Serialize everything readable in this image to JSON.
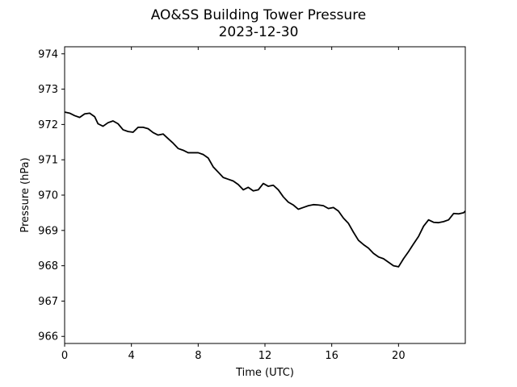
{
  "chart_data": {
    "type": "line",
    "title": "AO&SS Building Tower Pressure",
    "subtitle": "2023-12-30",
    "xlabel": "Time (UTC)",
    "ylabel": "Pressure (hPa)",
    "xlim": [
      0,
      24
    ],
    "ylim": [
      965.8,
      974.2
    ],
    "xticks": [
      0,
      4,
      8,
      12,
      16,
      20
    ],
    "yticks": [
      966,
      967,
      968,
      969,
      970,
      971,
      972,
      973,
      974
    ],
    "grid": false,
    "series_color": "#000000",
    "series": [
      {
        "x": [
          0,
          0.3,
          0.6,
          0.9,
          1.2,
          1.5,
          1.8,
          2.0,
          2.3,
          2.6,
          2.9,
          3.2,
          3.5,
          3.8,
          4.1,
          4.4,
          4.7,
          5.0,
          5.3,
          5.6,
          5.9,
          6.2,
          6.5,
          6.8,
          7.1,
          7.4,
          7.7,
          8.0,
          8.3,
          8.6,
          8.9,
          9.2,
          9.5,
          9.8,
          10.1,
          10.4,
          10.7,
          11.0,
          11.3,
          11.6,
          11.9,
          12.2,
          12.5,
          12.8,
          13.1,
          13.4,
          13.7,
          14.0,
          14.3,
          14.6,
          14.9,
          15.2,
          15.5,
          15.8,
          16.1,
          16.4,
          16.7,
          17.0,
          17.3,
          17.6,
          17.9,
          18.2,
          18.5,
          18.8,
          19.1,
          19.4,
          19.7,
          20.0,
          20.3,
          20.6,
          20.9,
          21.2,
          21.5,
          21.8,
          22.1,
          22.4,
          22.7,
          23.0,
          23.3,
          23.6,
          23.9,
          24.0
        ],
        "values": [
          972.35,
          972.32,
          972.25,
          972.2,
          972.3,
          972.32,
          972.22,
          972.02,
          971.95,
          972.05,
          972.1,
          972.02,
          971.85,
          971.8,
          971.78,
          971.92,
          971.92,
          971.88,
          971.77,
          971.7,
          971.73,
          971.6,
          971.47,
          971.32,
          971.27,
          971.2,
          971.2,
          971.2,
          971.15,
          971.05,
          970.8,
          970.65,
          970.5,
          970.45,
          970.4,
          970.3,
          970.15,
          970.22,
          970.12,
          970.15,
          970.33,
          970.25,
          970.28,
          970.15,
          969.95,
          969.8,
          969.72,
          969.6,
          969.65,
          969.7,
          969.73,
          969.72,
          969.7,
          969.62,
          969.65,
          969.55,
          969.35,
          969.2,
          968.95,
          968.72,
          968.6,
          968.5,
          968.35,
          968.25,
          968.2,
          968.1,
          968.0,
          967.97,
          968.2,
          968.4,
          968.62,
          968.83,
          969.12,
          969.3,
          969.23,
          969.22,
          969.25,
          969.3,
          969.48,
          969.47,
          969.5,
          969.55
        ]
      }
    ]
  }
}
